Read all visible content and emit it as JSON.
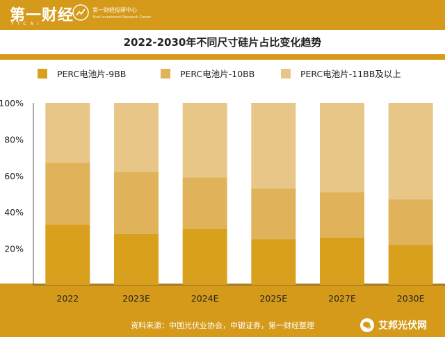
{
  "header": {
    "brand": "第一财经",
    "brand_sub": "YICAI",
    "center_name": "第一财经投研中心",
    "center_sub": "Yicai Investment Research Center"
  },
  "watermark": {
    "text": "艾邦光伏网"
  },
  "colors": {
    "brand": "#d59a1a",
    "series": [
      "#d9a01e",
      "#e0b25a",
      "#e8c688"
    ]
  },
  "chart_data": {
    "type": "bar",
    "stacked": true,
    "title": "2022-2030年不同尺寸硅片占比变化趋势",
    "categories": [
      "2022",
      "2023E",
      "2024E",
      "2025E",
      "2027E",
      "2030E"
    ],
    "series": [
      {
        "name": "PERC电池片-9BB",
        "values": [
          33,
          28,
          31,
          25,
          26,
          22
        ]
      },
      {
        "name": "PERC电池片-10BB",
        "values": [
          34,
          34,
          28,
          28,
          25,
          25
        ]
      },
      {
        "name": "PERC电池片-11BB及以上",
        "values": [
          33,
          38,
          41,
          47,
          49,
          53
        ]
      }
    ],
    "y_ticks": [
      "20%",
      "40%",
      "60%",
      "80%",
      "100%"
    ],
    "ylim": [
      0,
      100
    ],
    "legend_position": "top",
    "source": "资料来源：中国光伏业协会，中银证券，第一财经整理"
  }
}
